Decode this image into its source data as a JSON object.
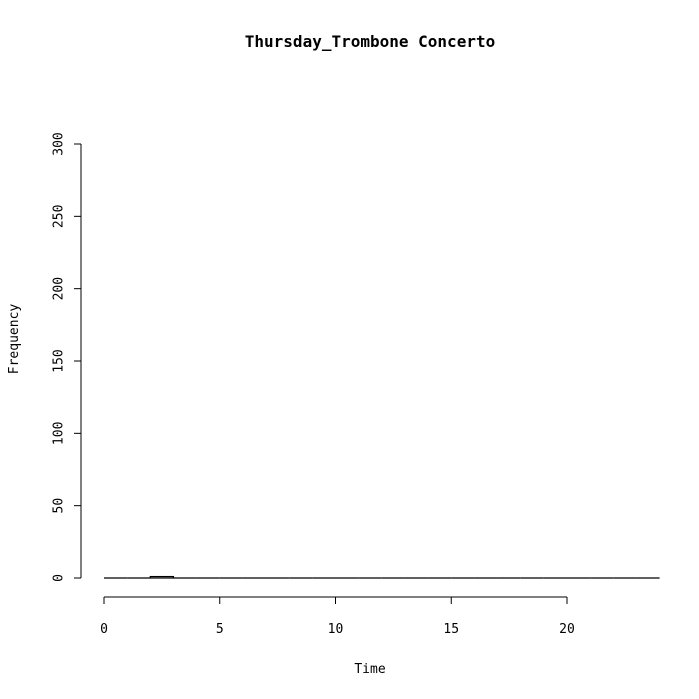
{
  "chart_data": {
    "type": "bar",
    "title": "Thursday_Trombone Concerto",
    "xlabel": "Time",
    "ylabel": "Frequency",
    "xlim": [
      0,
      24
    ],
    "ylim": [
      0,
      300
    ],
    "x_ticks": [
      0,
      5,
      10,
      15,
      20
    ],
    "y_ticks": [
      0,
      50,
      100,
      150,
      200,
      250,
      300
    ],
    "bins": [
      {
        "start": 0,
        "end": 1,
        "value": 0
      },
      {
        "start": 1,
        "end": 2,
        "value": 0
      },
      {
        "start": 2,
        "end": 3,
        "value": 1
      },
      {
        "start": 3,
        "end": 4,
        "value": 0
      },
      {
        "start": 4,
        "end": 5,
        "value": 0
      },
      {
        "start": 5,
        "end": 6,
        "value": 0
      },
      {
        "start": 6,
        "end": 7,
        "value": 0
      },
      {
        "start": 7,
        "end": 8,
        "value": 0
      },
      {
        "start": 8,
        "end": 9,
        "value": 0
      },
      {
        "start": 9,
        "end": 10,
        "value": 0
      },
      {
        "start": 10,
        "end": 11,
        "value": 0
      },
      {
        "start": 11,
        "end": 12,
        "value": 0
      },
      {
        "start": 12,
        "end": 13,
        "value": 0
      },
      {
        "start": 13,
        "end": 14,
        "value": 0
      },
      {
        "start": 14,
        "end": 15,
        "value": 0
      },
      {
        "start": 15,
        "end": 16,
        "value": 0
      },
      {
        "start": 16,
        "end": 17,
        "value": 0
      },
      {
        "start": 17,
        "end": 18,
        "value": 0
      },
      {
        "start": 18,
        "end": 19,
        "value": 0
      },
      {
        "start": 19,
        "end": 20,
        "value": 0
      },
      {
        "start": 20,
        "end": 21,
        "value": 0
      },
      {
        "start": 21,
        "end": 22,
        "value": 0
      },
      {
        "start": 22,
        "end": 23,
        "value": 0
      },
      {
        "start": 23,
        "end": 24,
        "value": 0
      }
    ],
    "grid": false,
    "legend": "none"
  }
}
